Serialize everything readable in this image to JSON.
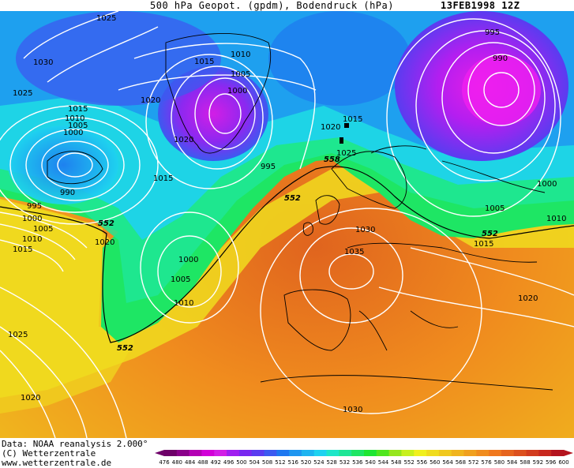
{
  "header": {
    "title": "500 hPa Geopot. (gpdm), Bodendruck (hPa)",
    "date": "13FEB1998 12Z"
  },
  "footer": {
    "source": "Data: NOAA reanalysis 2.000°",
    "copyright": "(C) Wetterzentrale",
    "website": "www.wetterzentrale.de"
  },
  "map": {
    "geopotential_labels": [
      {
        "value": "552"
      },
      {
        "value": "552"
      },
      {
        "value": "552"
      },
      {
        "value": "558"
      },
      {
        "value": "552"
      }
    ],
    "pressure_labels": [
      {
        "value": "1025"
      },
      {
        "value": "1030"
      },
      {
        "value": "1025"
      },
      {
        "value": "1020"
      },
      {
        "value": "1015"
      },
      {
        "value": "1010"
      },
      {
        "value": "1005"
      },
      {
        "value": "1000"
      },
      {
        "value": "1015"
      },
      {
        "value": "1010"
      },
      {
        "value": "1005"
      },
      {
        "value": "1000"
      },
      {
        "value": "1020"
      },
      {
        "value": "995"
      },
      {
        "value": "1015"
      },
      {
        "value": "990"
      },
      {
        "value": "995"
      },
      {
        "value": "1000"
      },
      {
        "value": "1005"
      },
      {
        "value": "1010"
      },
      {
        "value": "1015"
      },
      {
        "value": "1020"
      },
      {
        "value": "1000"
      },
      {
        "value": "1005"
      },
      {
        "value": "1010"
      },
      {
        "value": "1025"
      },
      {
        "value": "1020"
      },
      {
        "value": "1020"
      },
      {
        "value": "1015"
      },
      {
        "value": "1025"
      },
      {
        "value": "1030"
      },
      {
        "value": "1035"
      },
      {
        "value": "1030"
      },
      {
        "value": "995"
      },
      {
        "value": "990"
      },
      {
        "value": "1000"
      },
      {
        "value": "1005"
      },
      {
        "value": "1010"
      },
      {
        "value": "1015"
      },
      {
        "value": "1020"
      }
    ]
  },
  "legend": {
    "ticks": [
      "476",
      "480",
      "484",
      "488",
      "492",
      "496",
      "500",
      "504",
      "508",
      "512",
      "516",
      "520",
      "524",
      "528",
      "532",
      "536",
      "540",
      "544",
      "548",
      "552",
      "556",
      "560",
      "564",
      "568",
      "572",
      "576",
      "580",
      "584",
      "588",
      "592",
      "596",
      "600"
    ],
    "colors": [
      "#6e0069",
      "#8a008a",
      "#b400b4",
      "#d200d8",
      "#d21ee6",
      "#a01ef0",
      "#7828f0",
      "#5a3cf0",
      "#3c5af0",
      "#1e78f0",
      "#1e96f0",
      "#1eb4f0",
      "#1ed2f0",
      "#1ee6c8",
      "#1ee696",
      "#1ee664",
      "#1ee632",
      "#50e61e",
      "#96e61e",
      "#c8f01e",
      "#f0f01e",
      "#f0dc1e",
      "#f0c81e",
      "#f0b41e",
      "#f0a01e",
      "#f08c1e",
      "#f0781e",
      "#e6641e",
      "#dc501e",
      "#d23c1e",
      "#c8281e",
      "#b4141e"
    ]
  }
}
